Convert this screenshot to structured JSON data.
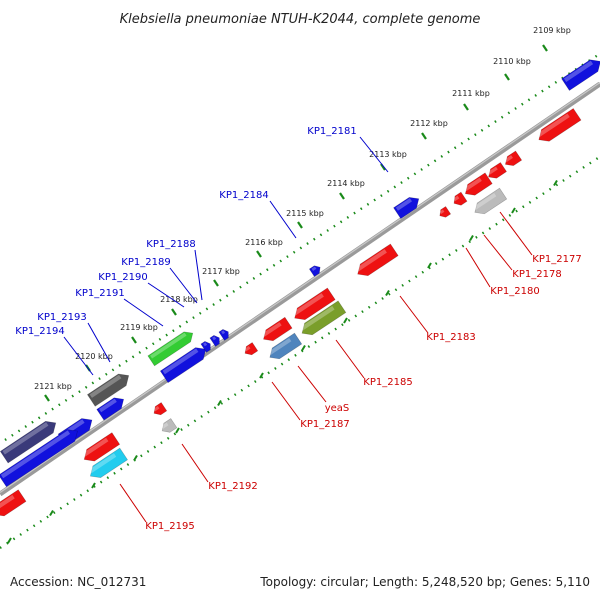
{
  "title": "Klebsiella pneumoniae NTUH-K2044, complete genome",
  "footer": {
    "accession": "Accession: NC_012731",
    "summary": "Topology: circular; Length: 5,248,520 bp; Genes: 5,110"
  },
  "colors": {
    "forward_label": "#0000cc",
    "reverse_label": "#cc0000",
    "backbone": "#808080",
    "tick": "#008000"
  },
  "ticks": [
    {
      "label": "2109 kbp"
    },
    {
      "label": "2110 kbp"
    },
    {
      "label": "2111 kbp"
    },
    {
      "label": "2112 kbp"
    },
    {
      "label": "2113 kbp"
    },
    {
      "label": "2114 kbp"
    },
    {
      "label": "2115 kbp"
    },
    {
      "label": "2116 kbp"
    },
    {
      "label": "2117 kbp"
    },
    {
      "label": "2118 kbp"
    },
    {
      "label": "2119 kbp"
    },
    {
      "label": "2120 kbp"
    },
    {
      "label": "2121 kbp"
    }
  ],
  "forward_labels": [
    {
      "name": "KP1_2181"
    },
    {
      "name": "KP1_2184"
    },
    {
      "name": "KP1_2188"
    },
    {
      "name": "KP1_2189"
    },
    {
      "name": "KP1_2190"
    },
    {
      "name": "KP1_2191"
    },
    {
      "name": "KP1_2193"
    },
    {
      "name": "KP1_2194"
    }
  ],
  "reverse_labels": [
    {
      "name": "KP1_2177"
    },
    {
      "name": "KP1_2178"
    },
    {
      "name": "KP1_2180"
    },
    {
      "name": "KP1_2183"
    },
    {
      "name": "KP1_2185"
    },
    {
      "name": "yeaS"
    },
    {
      "name": "KP1_2187"
    },
    {
      "name": "KP1_2192"
    },
    {
      "name": "KP1_2195"
    }
  ]
}
